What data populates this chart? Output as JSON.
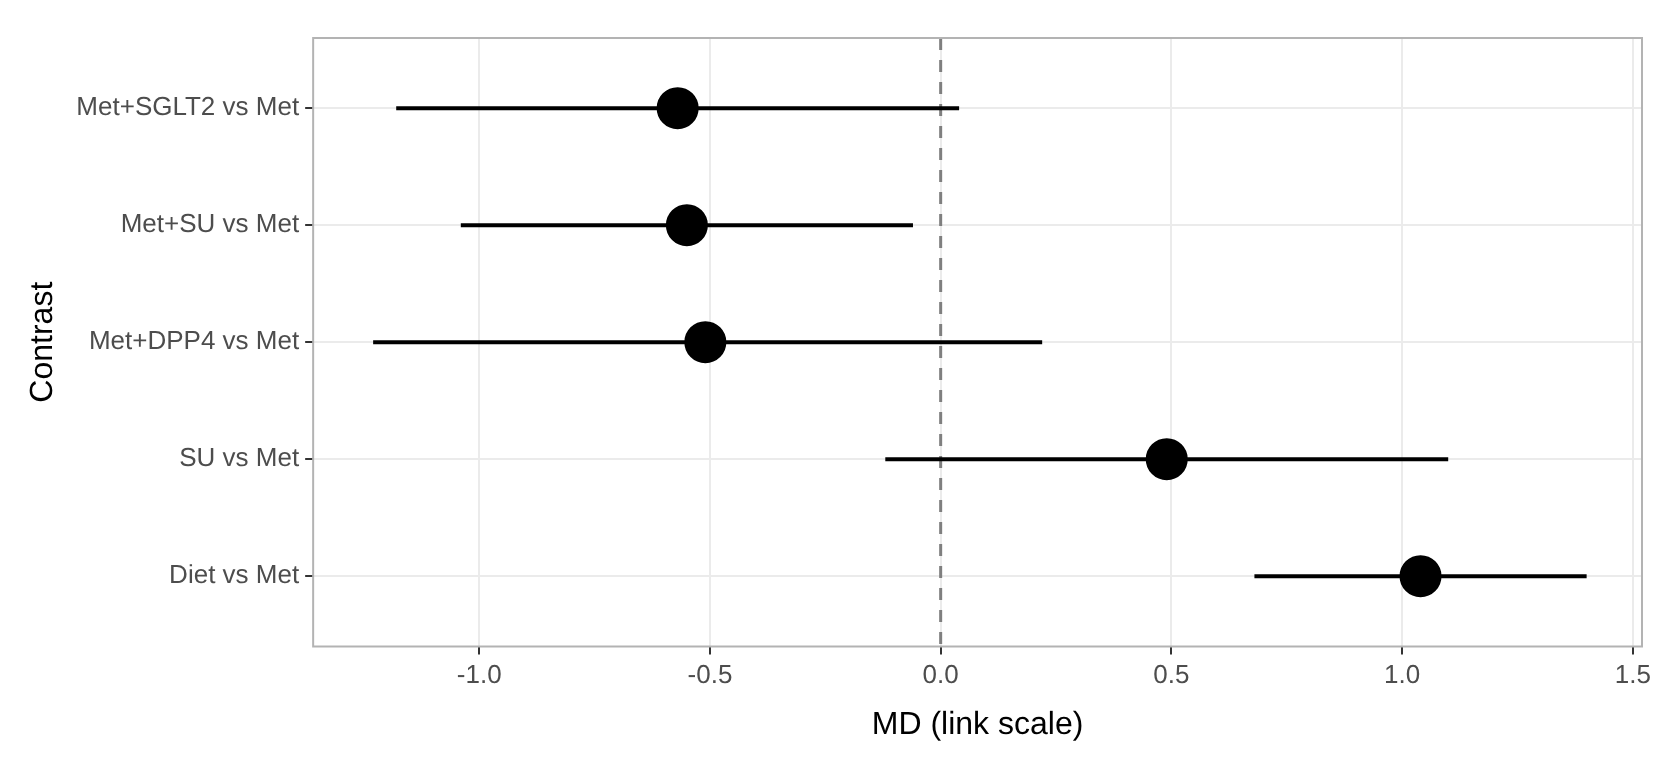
{
  "chart_data": {
    "type": "scatter",
    "orientation": "horizontal",
    "xlabel": "MD (link scale)",
    "ylabel": "Contrast",
    "categories": [
      "Met+SGLT2 vs Met",
      "Met+SU vs Met",
      "Met+DPP4 vs Met",
      "SU vs Met",
      "Diet vs Met"
    ],
    "series": [
      {
        "color": "#000000",
        "values": [
          -0.57,
          -0.55,
          -0.51,
          0.49,
          1.04
        ],
        "errors": [
          [
            -1.18,
            0.04
          ],
          [
            -1.04,
            -0.06
          ],
          [
            -1.23,
            0.22
          ],
          [
            -0.12,
            1.1
          ],
          [
            0.68,
            1.4
          ]
        ]
      }
    ],
    "xlim": [
      -1.36,
      1.52
    ],
    "xticks": [
      {
        "value": -1,
        "label": "-1.0"
      },
      {
        "value": -0.5,
        "label": "-0.5"
      },
      {
        "value": 0,
        "label": "0.0"
      },
      {
        "value": 0.5,
        "label": "0.5"
      },
      {
        "value": 1,
        "label": "1.0"
      },
      {
        "value": 1.5,
        "label": "1.5"
      }
    ],
    "ref_lines": [
      {
        "axis": "x",
        "value": 0,
        "color": "#7f7f7f",
        "line_style": "dashed"
      }
    ],
    "grid": true,
    "legend": false,
    "marker": "circle"
  }
}
